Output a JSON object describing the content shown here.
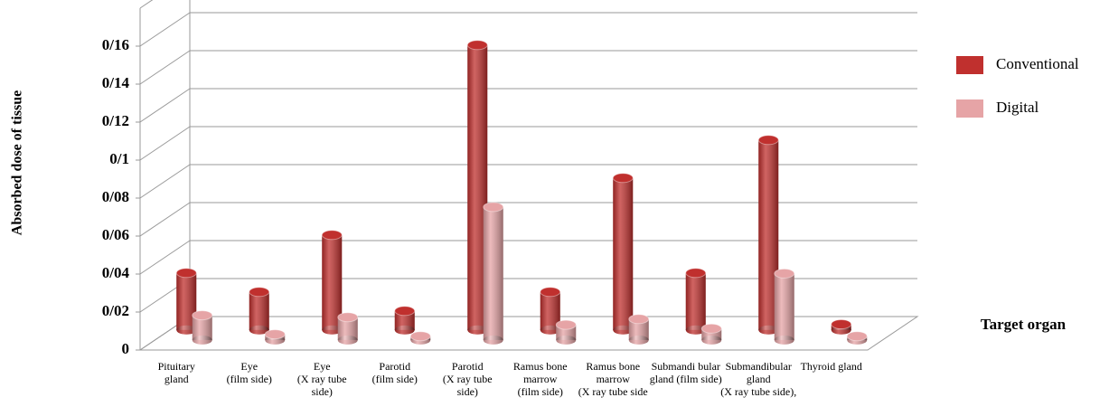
{
  "chart_data": {
    "type": "bar3d",
    "y_label": "Absorbed dose of tissue",
    "x_label": "Target organ",
    "categories": [
      [
        "Pituitary",
        "gland"
      ],
      [
        "Eye",
        "(film side)"
      ],
      [
        "Eye",
        "(X ray tube",
        "side)"
      ],
      [
        "Parotid",
        "(film side)"
      ],
      [
        "Parotid",
        "(X ray tube",
        "side)"
      ],
      [
        "Ramus bone",
        "marrow",
        "(film side)"
      ],
      [
        "Ramus bone",
        "marrow",
        "(X ray tube side"
      ],
      [
        "Submandi bular",
        "gland (film side)"
      ],
      [
        "Submandibular",
        "gland",
        "(X ray tube side),"
      ],
      [
        "Thyroid gland"
      ]
    ],
    "series": [
      {
        "name": "Conventional",
        "color": "#c0302e",
        "values": [
          0.03,
          0.02,
          0.05,
          0.01,
          0.15,
          0.02,
          0.08,
          0.03,
          0.1,
          0.003
        ]
      },
      {
        "name": "Digital",
        "color": "#e6a4a6",
        "values": [
          0.013,
          0.003,
          0.012,
          0.002,
          0.07,
          0.008,
          0.011,
          0.006,
          0.035,
          0.002
        ]
      }
    ],
    "ylim": [
      0,
      0.18
    ],
    "yticks": [
      0,
      {
        "value": 0.02,
        "label": "0/02"
      },
      {
        "value": 0.04,
        "label": "0/04"
      },
      {
        "value": 0.06,
        "label": "0/06"
      },
      {
        "value": 0.08,
        "label": "0/08"
      },
      {
        "value": 0.1,
        "label": "0/1"
      },
      {
        "value": 0.12,
        "label": "0/12"
      },
      {
        "value": 0.14,
        "label": "0/14"
      },
      {
        "value": 0.16,
        "label": "0/16"
      }
    ],
    "grid": true,
    "legend": "right"
  }
}
